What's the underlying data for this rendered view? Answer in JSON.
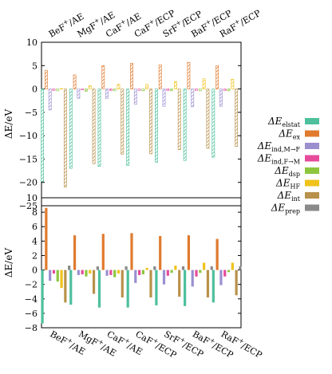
{
  "chart_data": [
    {
      "type": "bar",
      "pattern": "hatched",
      "categories": [
        [
          "BeF",
          "+",
          "/AE"
        ],
        [
          "MgF",
          "+",
          "/AE"
        ],
        [
          "CaF",
          "+",
          "/AE"
        ],
        [
          "CaF",
          "+",
          "/ECP"
        ],
        [
          "SrF",
          "+",
          "/ECP"
        ],
        [
          "BaF",
          "+",
          "/ECP"
        ],
        [
          "RaF",
          "+",
          "/ECP"
        ]
      ],
      "category_labels_position": "top",
      "ylabel": "ΔE/eV",
      "ylim": [
        -25,
        10
      ],
      "yticks": [
        "10",
        "5",
        "0",
        "−5",
        "−10",
        "−15",
        "−20",
        "−25"
      ],
      "series": [
        {
          "key": "elstat",
          "values": [
            -19.8,
            -17.0,
            -16.6,
            -16.4,
            -15.7,
            -15.3,
            -14.6
          ]
        },
        {
          "key": "ex",
          "values": [
            4.0,
            3.0,
            5.0,
            5.5,
            5.2,
            5.7,
            5.0
          ]
        },
        {
          "key": "ind_MF",
          "values": [
            -4.5,
            -2.0,
            -2.0,
            -3.3,
            -3.7,
            -3.8,
            -3.7
          ]
        },
        {
          "key": "ind_FM",
          "values": [
            -0.3,
            -0.2,
            -0.3,
            -0.3,
            -0.3,
            -0.3,
            -0.3
          ]
        },
        {
          "key": "dsp",
          "values": [
            -0.4,
            -0.5,
            -0.4,
            -0.4,
            -0.4,
            -0.4,
            -0.4
          ]
        },
        {
          "key": "HF",
          "values": [
            0.1,
            0.7,
            1.0,
            1.0,
            1.6,
            2.2,
            2.1
          ]
        },
        {
          "key": "int",
          "values": [
            -21.0,
            -16.0,
            -14.0,
            -13.9,
            -13.0,
            -12.7,
            -12.3
          ]
        },
        {
          "key": "prep",
          "values": [
            0.0,
            0.0,
            0.0,
            0.0,
            0.0,
            0.0,
            0.0
          ]
        }
      ]
    },
    {
      "type": "bar",
      "pattern": "solid",
      "categories": [
        [
          "BeF",
          "+",
          "/AE"
        ],
        [
          "MgF",
          "+",
          "/AE"
        ],
        [
          "CaF",
          "+",
          "/AE"
        ],
        [
          "CaF",
          "+",
          "/ECP"
        ],
        [
          "SrF",
          "+",
          "/ECP"
        ],
        [
          "BaF",
          "+",
          "/ECP"
        ],
        [
          "RaF",
          "+",
          "/ECP"
        ]
      ],
      "category_labels_position": "bottom",
      "ylabel": "ΔE/eV",
      "ylim": [
        -8,
        10
      ],
      "yticks": [
        "10",
        "8",
        "6",
        "4",
        "2",
        "0",
        "−2",
        "−4",
        "−6",
        "−8"
      ],
      "series": [
        {
          "key": "elstat",
          "values": [
            -7.4,
            -4.8,
            -5.2,
            -5.2,
            -4.9,
            -5.0,
            -4.5
          ]
        },
        {
          "key": "ex",
          "values": [
            8.6,
            4.8,
            5.0,
            5.1,
            4.7,
            4.8,
            4.3
          ]
        },
        {
          "key": "ind_MF",
          "values": [
            -1.5,
            -0.7,
            -0.8,
            -1.8,
            -2.0,
            -2.3,
            -2.1
          ]
        },
        {
          "key": "ind_FM",
          "values": [
            -0.5,
            -0.6,
            -0.7,
            -0.7,
            -0.8,
            -0.9,
            -0.9
          ]
        },
        {
          "key": "dsp",
          "values": [
            -1.6,
            -0.9,
            -1.0,
            -0.6,
            -0.4,
            -0.4,
            -0.3
          ]
        },
        {
          "key": "HF",
          "values": [
            -2.5,
            -0.5,
            -0.5,
            0.3,
            0.6,
            1.0,
            1.0
          ]
        },
        {
          "key": "int",
          "values": [
            -4.5,
            -3.3,
            -3.8,
            -3.8,
            -3.7,
            -3.8,
            -3.5
          ]
        },
        {
          "key": "prep",
          "values": [
            0.6,
            0.5,
            0.5,
            0.5,
            0.5,
            0.5,
            0.5
          ]
        }
      ]
    }
  ],
  "legend": {
    "placement": "right",
    "entries": [
      {
        "key": "elstat",
        "base": "ΔE",
        "sub": "elstat",
        "color": "#4dbf9c"
      },
      {
        "key": "ex",
        "base": "ΔE",
        "sub": "ex",
        "color": "#e07a2e"
      },
      {
        "key": "ind_MF",
        "base": "ΔE",
        "sub": "ind,M→F",
        "color": "#9b8fd0"
      },
      {
        "key": "ind_FM",
        "base": "ΔE",
        "sub": "ind,F→M",
        "color": "#e64b9a"
      },
      {
        "key": "dsp",
        "base": "ΔE",
        "sub": "dsp",
        "color": "#8cc63f"
      },
      {
        "key": "HF",
        "base": "ΔE",
        "sub": "HF",
        "color": "#f0c21a"
      },
      {
        "key": "int",
        "base": "ΔE",
        "sub": "int",
        "color": "#b8914a"
      },
      {
        "key": "prep",
        "base": "ΔE",
        "sub": "prep",
        "color": "#8a8a8a"
      }
    ]
  }
}
